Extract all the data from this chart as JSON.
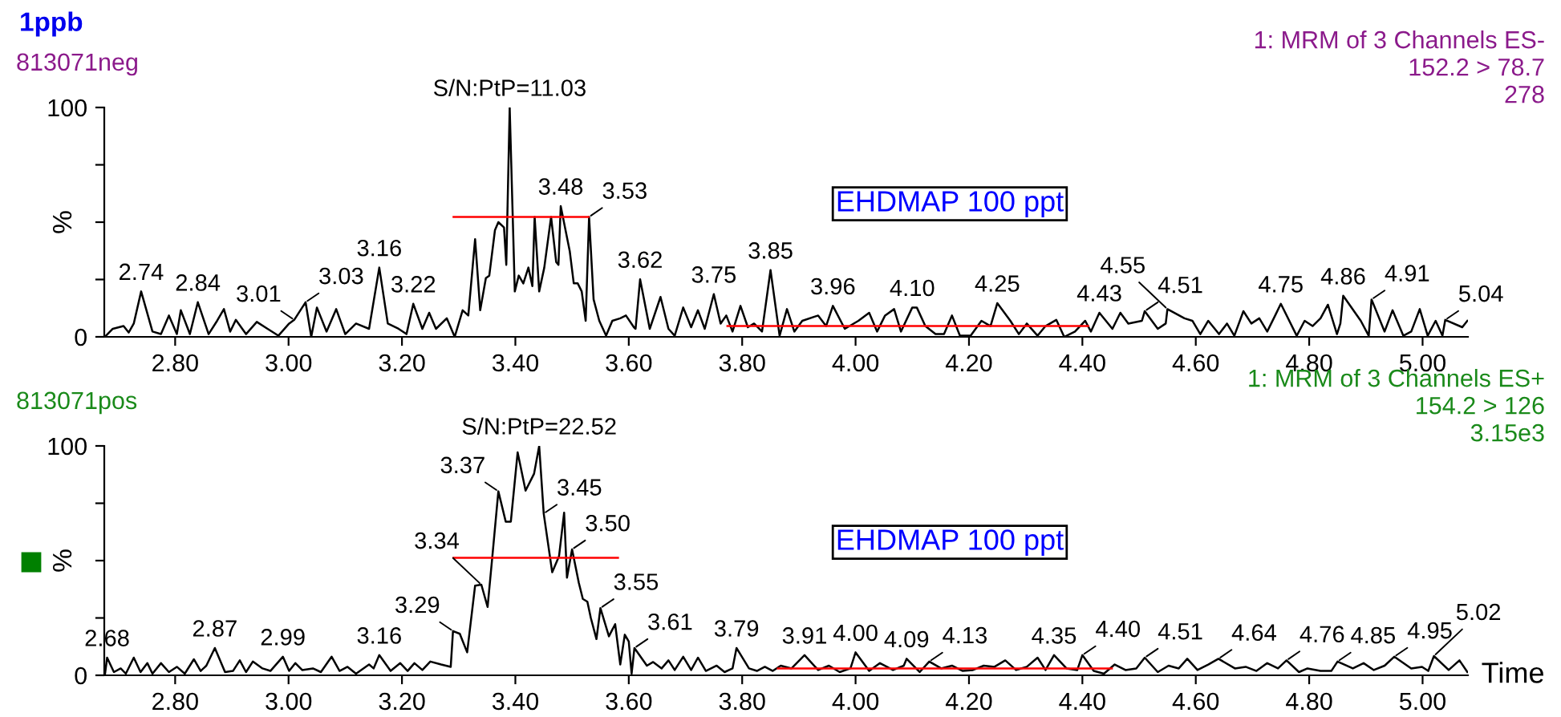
{
  "chart_data": [
    {
      "type": "line",
      "title": "1ppb",
      "subtitle": "813071neg",
      "ylabel": "%",
      "xlim": [
        2.675,
        5.08
      ],
      "xticks": [
        {
          "value": 2.8,
          "label": "2.80"
        },
        {
          "value": 3.0,
          "label": "3.00"
        },
        {
          "value": 3.2,
          "label": "3.20"
        },
        {
          "value": 3.4,
          "label": "3.40"
        },
        {
          "value": 3.6,
          "label": "3.60"
        },
        {
          "value": 3.8,
          "label": "3.80"
        },
        {
          "value": 4.0,
          "label": "4.00"
        },
        {
          "value": 4.2,
          "label": "4.20"
        },
        {
          "value": 4.4,
          "label": "4.40"
        },
        {
          "value": 4.6,
          "label": "4.60"
        },
        {
          "value": 4.8,
          "label": "4.80"
        },
        {
          "value": 5.0,
          "label": "5.00"
        }
      ],
      "ylim": [
        0,
        100
      ],
      "yticks": [
        0,
        {
          "value": 25,
          "label": null
        },
        {
          "value": 50,
          "label": null
        },
        {
          "value": 75,
          "label": null
        },
        100
      ],
      "grid": false,
      "series": [
        {
          "color": "#000000",
          "x": [
            2.676,
            2.69,
            2.709,
            2.718,
            2.727,
            2.74,
            2.76,
            2.775,
            2.789,
            2.803,
            2.81,
            2.826,
            2.84,
            2.859,
            2.874,
            2.886,
            2.897,
            2.907,
            2.925,
            2.944,
            2.963,
            2.982,
            3.001,
            3.01,
            3.03,
            3.04,
            3.05,
            3.067,
            3.084,
            3.1,
            3.119,
            3.142,
            3.16,
            3.175,
            3.194,
            3.208,
            3.22,
            3.236,
            3.248,
            3.26,
            3.279,
            3.293,
            3.307,
            3.317,
            3.329,
            3.338,
            3.348,
            3.354,
            3.364,
            3.37,
            3.38,
            3.384,
            3.39,
            3.399,
            3.406,
            3.414,
            3.423,
            3.43,
            3.434,
            3.442,
            3.451,
            3.463,
            3.472,
            3.476,
            3.48,
            3.496,
            3.503,
            3.51,
            3.517,
            3.524,
            3.53,
            3.538,
            3.548,
            3.56,
            3.571,
            3.585,
            3.595,
            3.609,
            3.612,
            3.62,
            3.637,
            3.656,
            3.67,
            3.681,
            3.696,
            3.71,
            3.722,
            3.734,
            3.75,
            3.762,
            3.772,
            3.783,
            3.797,
            3.81,
            3.821,
            3.835,
            3.85,
            3.866,
            3.879,
            3.892,
            3.906,
            3.934,
            3.948,
            3.96,
            3.981,
            4.005,
            4.024,
            4.038,
            4.052,
            4.068,
            4.08,
            4.1,
            4.108,
            4.123,
            4.141,
            4.156,
            4.17,
            4.184,
            4.203,
            4.222,
            4.238,
            4.25,
            4.273,
            4.288,
            4.302,
            4.321,
            4.335,
            4.354,
            4.368,
            4.387,
            4.405,
            4.415,
            4.43,
            4.453,
            4.467,
            4.481,
            4.505,
            4.51,
            4.533,
            4.547,
            4.55,
            4.58,
            4.594,
            4.608,
            4.622,
            4.641,
            4.655,
            4.668,
            4.684,
            4.698,
            4.712,
            4.726,
            4.74,
            4.75,
            4.778,
            4.792,
            4.806,
            4.82,
            4.833,
            4.849,
            4.855,
            4.86,
            4.891,
            4.905,
            4.91,
            4.933,
            4.947,
            4.966,
            4.98,
            4.995,
            5.009,
            5.023,
            5.035,
            5.04,
            5.07,
            5.079
          ],
          "values": [
            0,
            3.5,
            4.7,
            1.9,
            5.8,
            19.8,
            2.3,
            1.2,
            9.3,
            1.2,
            11.6,
            1.2,
            15.1,
            1.2,
            7.0,
            12.1,
            2.3,
            7.4,
            1.2,
            6.5,
            3.5,
            0.5,
            5.8,
            7.4,
            15.1,
            0,
            12.8,
            2.3,
            12.1,
            1.2,
            5.8,
            3.5,
            30.2,
            5.8,
            3.5,
            1.2,
            14.4,
            3.5,
            10.5,
            3.5,
            8.1,
            0,
            11.6,
            9.3,
            42.6,
            11.6,
            25.6,
            26.7,
            46.5,
            50.0,
            47.7,
            31.4,
            100,
            19.8,
            26.7,
            23.3,
            30.2,
            22.1,
            52.3,
            19.8,
            30.2,
            52.3,
            32.6,
            31.4,
            57.0,
            37.2,
            23.3,
            23.3,
            19.8,
            7.0,
            52.3,
            16.3,
            7.0,
            0.5,
            7.0,
            8.1,
            9.3,
            4.2,
            3.5,
            25.1,
            3.5,
            17.4,
            3.5,
            0.5,
            12.8,
            4.2,
            11.6,
            3.5,
            18.6,
            5.8,
            9.3,
            2.3,
            13.5,
            4.2,
            5.8,
            2.3,
            29.1,
            0.5,
            12.1,
            2.3,
            7.0,
            9.3,
            4.7,
            13.5,
            3.5,
            7.0,
            10.5,
            2.3,
            9.3,
            12.1,
            2.3,
            12.8,
            12.8,
            4.7,
            1.2,
            1.2,
            9.3,
            0.5,
            0.5,
            7.0,
            4.7,
            14.7,
            7.0,
            1.2,
            5.8,
            0.5,
            4.7,
            7.4,
            0,
            2.3,
            7.0,
            2.3,
            10.5,
            3.5,
            10.5,
            5.8,
            7.0,
            11.2,
            3.5,
            5.8,
            12.1,
            8.1,
            7.0,
            1.2,
            7.0,
            1.2,
            5.8,
            0.5,
            11.2,
            5.8,
            8.1,
            2.3,
            9.3,
            14.4,
            0.5,
            7.0,
            4.7,
            8.1,
            14.0,
            1.2,
            5.8,
            17.9,
            7.0,
            0.5,
            16.3,
            2.3,
            11.6,
            0.5,
            2.3,
            12.1,
            0.5,
            7.0,
            0.5,
            7.4,
            4.2,
            7.0
          ]
        },
        {
          "color": "#ff0000",
          "x": [
            3.291,
            3.529
          ],
          "values": [
            52.3,
            52.3
          ]
        },
        {
          "color": "#ff0000",
          "x": [
            3.774,
            4.41
          ],
          "values": [
            4.7,
            4.7
          ]
        }
      ],
      "annotations": [
        {
          "text": "S/N:PtP=11.03",
          "x": 3.39,
          "y": 100
        },
        "EHDMAP 100 ppt",
        "1: MRM of 3 Channels ES-\n152.2 > 78.7\n278",
        {
          "text": "2.74",
          "x": 2.74,
          "y": 19.8
        },
        {
          "text": "2.84",
          "x": 2.84,
          "y": 15.1
        },
        {
          "text": "3.01",
          "x": 3.01,
          "y": 7.4
        },
        {
          "text": "3.03",
          "x": 3.03,
          "y": 15.1
        },
        {
          "text": "3.16",
          "x": 3.16,
          "y": 30.2
        },
        {
          "text": "3.22",
          "x": 3.22,
          "y": 14.4
        },
        {
          "text": "3.48",
          "x": 3.48,
          "y": 57.0
        },
        {
          "text": "3.53",
          "x": 3.53,
          "y": 52.3
        },
        {
          "text": "3.62",
          "x": 3.62,
          "y": 25.1
        },
        {
          "text": "3.75",
          "x": 3.75,
          "y": 18.6
        },
        {
          "text": "3.85",
          "x": 3.85,
          "y": 29.1
        },
        {
          "text": "3.96",
          "x": 3.96,
          "y": 13.5
        },
        {
          "text": "4.10",
          "x": 4.1,
          "y": 12.8
        },
        {
          "text": "4.25",
          "x": 4.25,
          "y": 14.7
        },
        {
          "text": "4.43",
          "x": 4.43,
          "y": 10.5
        },
        {
          "text": "4.51",
          "x": 4.51,
          "y": 11.2
        },
        {
          "text": "4.55",
          "x": 4.55,
          "y": 12.1
        },
        {
          "text": "4.75",
          "x": 4.75,
          "y": 14.4
        },
        {
          "text": "4.86",
          "x": 4.86,
          "y": 17.9
        },
        {
          "text": "4.91",
          "x": 4.91,
          "y": 16.3
        },
        {
          "text": "5.04",
          "x": 5.04,
          "y": 7.4
        }
      ]
    },
    {
      "type": "line",
      "subtitle": "813071pos",
      "ylabel": "%",
      "xlabel": "Time",
      "xlim": [
        2.675,
        5.08
      ],
      "xticks": [
        {
          "value": 2.8,
          "label": "2.80"
        },
        {
          "value": 3.0,
          "label": "3.00"
        },
        {
          "value": 3.2,
          "label": "3.20"
        },
        {
          "value": 3.4,
          "label": "3.40"
        },
        {
          "value": 3.6,
          "label": "3.60"
        },
        {
          "value": 3.8,
          "label": "3.80"
        },
        {
          "value": 4.0,
          "label": "4.00"
        },
        {
          "value": 4.2,
          "label": "4.20"
        },
        {
          "value": 4.4,
          "label": "4.40"
        },
        {
          "value": 4.6,
          "label": "4.60"
        },
        {
          "value": 4.8,
          "label": "4.80"
        },
        {
          "value": 5.0,
          "label": "5.00"
        }
      ],
      "ylim": [
        0,
        100
      ],
      "yticks": [
        0,
        {
          "value": 25,
          "label": null
        },
        {
          "value": 50,
          "label": null
        },
        {
          "value": 75,
          "label": null
        },
        100
      ],
      "grid": false,
      "series": [
        {
          "color": "#000000",
          "x": [
            2.676,
            2.68,
            2.692,
            2.704,
            2.713,
            2.727,
            2.739,
            2.751,
            2.76,
            2.775,
            2.789,
            2.803,
            2.817,
            2.833,
            2.845,
            2.855,
            2.87,
            2.888,
            2.902,
            2.914,
            2.925,
            2.937,
            2.954,
            2.968,
            2.99,
            3.001,
            3.012,
            3.024,
            3.043,
            3.057,
            3.076,
            3.09,
            3.104,
            3.119,
            3.142,
            3.15,
            3.16,
            3.18,
            3.197,
            3.21,
            3.222,
            3.236,
            3.25,
            3.269,
            3.286,
            3.29,
            3.302,
            3.315,
            3.329,
            3.34,
            3.351,
            3.359,
            3.37,
            3.383,
            3.392,
            3.404,
            3.418,
            3.433,
            3.442,
            3.45,
            3.465,
            3.477,
            3.486,
            3.491,
            3.5,
            3.512,
            3.519,
            3.527,
            3.533,
            3.543,
            3.55,
            3.565,
            3.576,
            3.585,
            3.593,
            3.6,
            3.605,
            3.61,
            3.632,
            3.643,
            3.658,
            3.67,
            3.681,
            3.696,
            3.71,
            3.722,
            3.736,
            3.755,
            3.769,
            3.783,
            3.79,
            3.812,
            3.826,
            3.84,
            3.854,
            3.868,
            3.887,
            3.91,
            3.934,
            3.953,
            3.972,
            3.991,
            4.0,
            4.024,
            4.043,
            4.066,
            4.085,
            4.09,
            4.113,
            4.13,
            4.151,
            4.17,
            4.189,
            4.207,
            4.226,
            4.245,
            4.264,
            4.283,
            4.302,
            4.321,
            4.335,
            4.35,
            4.372,
            4.391,
            4.4,
            4.42,
            4.438,
            4.457,
            4.476,
            4.495,
            4.51,
            4.533,
            4.552,
            4.57,
            4.585,
            4.603,
            4.622,
            4.64,
            4.669,
            4.688,
            4.707,
            4.726,
            4.745,
            4.76,
            4.782,
            4.797,
            4.82,
            4.839,
            4.85,
            4.877,
            4.896,
            4.914,
            4.933,
            4.95,
            4.98,
            4.999,
            5.01,
            5.02,
            5.046,
            5.065,
            5.079
          ],
          "values": [
            0,
            7.7,
            1.4,
            3.0,
            0.7,
            7.7,
            1.4,
            5.3,
            0.7,
            5.3,
            1.4,
            3.7,
            0.7,
            7.0,
            1.9,
            4.2,
            11.9,
            1.4,
            1.9,
            6.5,
            1.4,
            6.0,
            3.0,
            1.9,
            8.1,
            1.9,
            5.3,
            2.3,
            3.0,
            1.4,
            8.1,
            1.9,
            3.7,
            0.7,
            4.7,
            3.0,
            8.8,
            1.9,
            5.3,
            1.9,
            5.3,
            2.3,
            6.0,
            4.7,
            3.7,
            19.3,
            18.1,
            10.0,
            39.1,
            39.5,
            29.8,
            50.7,
            80.2,
            67.0,
            67.0,
            97.2,
            80.5,
            87.9,
            100,
            70.5,
            44.9,
            51.9,
            70.9,
            42.6,
            54.9,
            40.2,
            33.3,
            32.1,
            25.1,
            15.8,
            29.3,
            17.0,
            22.3,
            4.7,
            17.7,
            14.7,
            0.7,
            11.9,
            4.2,
            5.8,
            3.0,
            6.5,
            2.3,
            8.1,
            2.3,
            7.7,
            1.9,
            4.2,
            1.4,
            3.0,
            11.9,
            3.0,
            1.9,
            3.7,
            1.9,
            4.2,
            3.0,
            8.8,
            2.3,
            4.2,
            1.4,
            3.0,
            10.0,
            1.9,
            5.3,
            2.3,
            4.2,
            7.2,
            1.4,
            6.0,
            3.0,
            4.2,
            1.9,
            2.3,
            4.2,
            3.7,
            6.5,
            2.3,
            3.7,
            7.7,
            2.3,
            8.8,
            3.0,
            2.3,
            8.8,
            1.9,
            0.7,
            4.7,
            2.3,
            3.0,
            7.7,
            1.4,
            4.2,
            3.0,
            7.2,
            2.3,
            4.7,
            7.2,
            3.0,
            3.7,
            1.9,
            5.3,
            3.0,
            6.5,
            1.4,
            3.0,
            1.9,
            1.9,
            6.0,
            3.0,
            5.3,
            2.3,
            4.2,
            8.1,
            3.0,
            3.7,
            1.9,
            8.4,
            2.3,
            6.5,
            1.4
          ]
        },
        {
          "color": "#ff0000",
          "x": [
            3.291,
            3.581
          ],
          "values": [
            51.2,
            51.2
          ]
        },
        {
          "color": "#ff0000",
          "x": [
            3.863,
            4.452
          ],
          "values": [
            3.0,
            3.0
          ]
        }
      ],
      "annotations": [
        {
          "text": "S/N:PtP=22.52",
          "x": 3.442,
          "y": 100
        },
        "EHDMAP 100 ppt",
        "1: MRM of 3 Channels ES+\n154.2 > 126\n3.15e3",
        {
          "text": "2.68",
          "x": 2.68,
          "y": 7.7
        },
        {
          "text": "2.87",
          "x": 2.87,
          "y": 11.9
        },
        {
          "text": "2.99",
          "x": 2.99,
          "y": 8.1
        },
        {
          "text": "3.16",
          "x": 3.16,
          "y": 8.8
        },
        {
          "text": "3.29",
          "x": 3.29,
          "y": 19.3
        },
        {
          "text": "3.34",
          "x": 3.34,
          "y": 39.5
        },
        {
          "text": "3.37",
          "x": 3.37,
          "y": 80.2
        },
        {
          "text": "3.45",
          "x": 3.45,
          "y": 70.5
        },
        {
          "text": "3.50",
          "x": 3.5,
          "y": 54.9
        },
        {
          "text": "3.55",
          "x": 3.55,
          "y": 29.3
        },
        {
          "text": "3.61",
          "x": 3.61,
          "y": 11.9
        },
        {
          "text": "3.79",
          "x": 3.79,
          "y": 11.9
        },
        {
          "text": "3.91",
          "x": 3.91,
          "y": 8.8
        },
        {
          "text": "4.00",
          "x": 4.0,
          "y": 10.0
        },
        {
          "text": "4.09",
          "x": 4.09,
          "y": 7.2
        },
        {
          "text": "4.13",
          "x": 4.13,
          "y": 6.0
        },
        {
          "text": "4.35",
          "x": 4.35,
          "y": 8.8
        },
        {
          "text": "4.40",
          "x": 4.4,
          "y": 8.8
        },
        {
          "text": "4.51",
          "x": 4.51,
          "y": 7.7
        },
        {
          "text": "4.64",
          "x": 4.64,
          "y": 7.2
        },
        {
          "text": "4.76",
          "x": 4.76,
          "y": 6.5
        },
        {
          "text": "4.85",
          "x": 4.85,
          "y": 6.0
        },
        {
          "text": "4.95",
          "x": 4.95,
          "y": 8.1
        },
        {
          "text": "5.02",
          "x": 5.02,
          "y": 8.4
        }
      ]
    }
  ]
}
